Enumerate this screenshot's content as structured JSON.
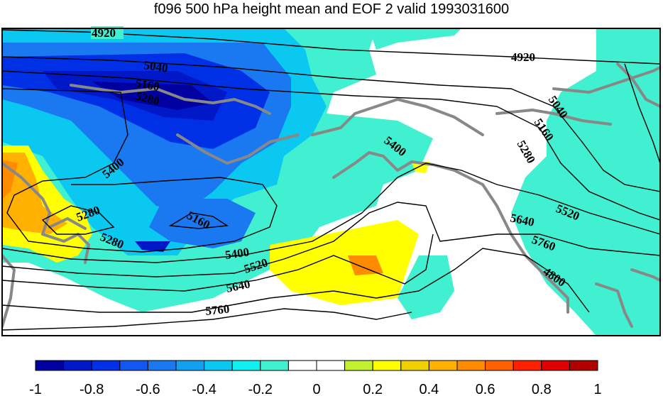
{
  "title": "f096 500 hPa height mean and EOF 2 valid 1993031600",
  "colorbar": {
    "ticks": [
      "-1",
      "-0.8",
      "-0.6",
      "-0.4",
      "-0.2",
      "0",
      "0.2",
      "0.4",
      "0.6",
      "0.8",
      "1"
    ],
    "colors": [
      "#0000a0",
      "#0018c8",
      "#0030e6",
      "#1058f0",
      "#1a78f0",
      "#12a0f0",
      "#0ac8f0",
      "#10f0f0",
      "#40f0d0",
      "#ffffff",
      "#ffffff",
      "#c0f030",
      "#ffff00",
      "#f0d000",
      "#ffb000",
      "#ff8c00",
      "#ff6000",
      "#ff2000",
      "#e00000",
      "#b00000"
    ]
  },
  "colors": {
    "land_outline": "#888888",
    "contour": "#000000",
    "frame": "#000000"
  },
  "contour_labels": [
    "4920",
    "5040",
    "5160",
    "5280",
    "5400",
    "5280",
    "5160",
    "5280",
    "5400",
    "5520",
    "5640",
    "5760",
    "4920",
    "5040",
    "5160",
    "5280",
    "5400",
    "5520",
    "5640",
    "5760",
    "4800"
  ]
}
